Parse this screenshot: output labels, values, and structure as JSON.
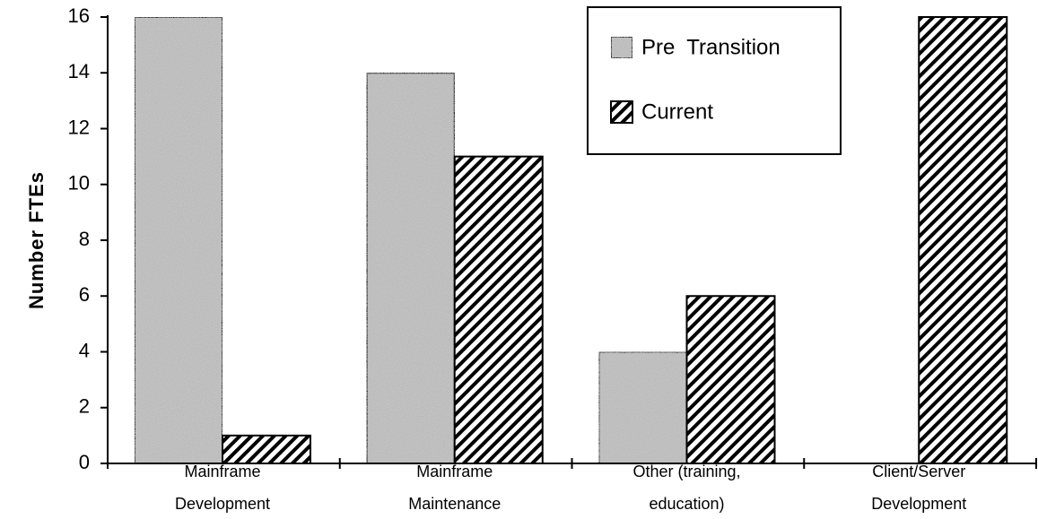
{
  "chart_data": {
    "type": "bar",
    "y_label": "Number  FTEs",
    "categories": [
      "Mainframe Development",
      "Mainframe Maintenance",
      "Other  (training, education)",
      "Client/Server Development"
    ],
    "series": [
      {
        "name": "Pre  Transition",
        "color": "#c4c4c4",
        "pattern": "speckle",
        "values": [
          16,
          14,
          4,
          null
        ]
      },
      {
        "name": "Current",
        "color": "#000000",
        "pattern": "hatch",
        "values": [
          1,
          11,
          6,
          16
        ]
      }
    ],
    "ylim": [
      0,
      16
    ],
    "yticks": [
      0,
      2,
      4,
      6,
      8,
      10,
      12,
      14,
      16
    ],
    "grid": false,
    "legend": "top-right"
  }
}
